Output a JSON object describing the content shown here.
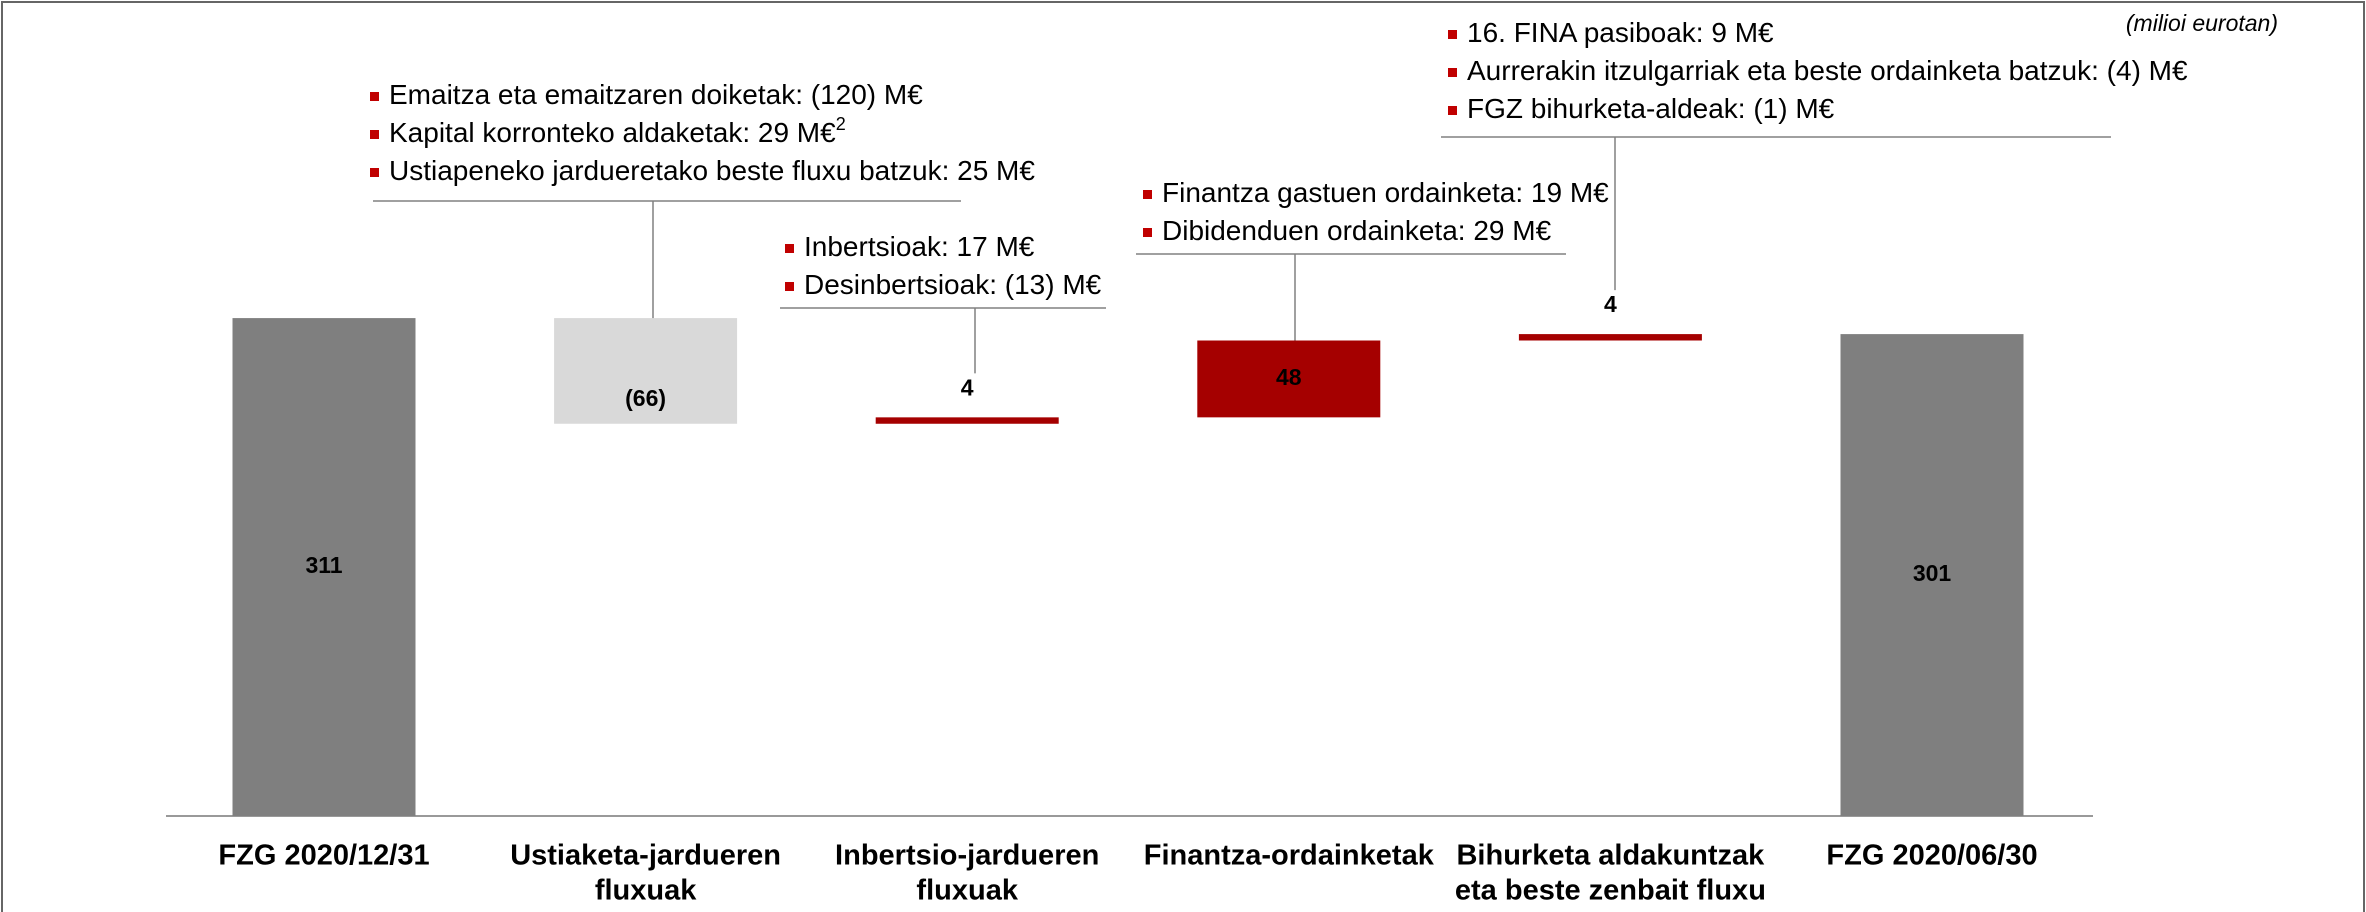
{
  "chart_data": {
    "type": "waterfall",
    "subtitle": "(milioi eurotan)",
    "categories": [
      "FZG 2020/12/31",
      "Ustiaketa-jardueren fluxuak",
      "Inbertsio-jardueren fluxuak",
      "Finantza-ordainketak",
      "Bihurketa aldakuntzak eta beste zenbait fluxu",
      "FZG 2020/06/30"
    ],
    "category_lines": [
      [
        "FZG 2020/12/31"
      ],
      [
        "Ustiaketa-jardueren",
        "fluxuak"
      ],
      [
        "Inbertsio-jardueren",
        "fluxuak"
      ],
      [
        "Finantza-ordainketak"
      ],
      [
        "Bihurketa aldakuntzak",
        "eta beste zenbait fluxu"
      ],
      [
        "FZG 2020/06/30"
      ]
    ],
    "values": [
      311,
      -66,
      4,
      48,
      4,
      301
    ],
    "value_labels": [
      "311",
      "(66)",
      "4",
      "48",
      "4",
      "301"
    ],
    "totals": [
      true,
      false,
      false,
      false,
      false,
      true
    ],
    "colors": [
      "#7f7f7f",
      "#d9d9d9",
      "#a50000",
      "#a50000",
      "#a50000",
      "#7f7f7f"
    ],
    "annotations": [
      {
        "lines": [
          {
            "text": "Emaitza eta emaitzaren doiketak: (120) M€"
          },
          {
            "text": "Kapital korronteko aldaketak: 29 M€",
            "sup": "2"
          },
          {
            "text": "Ustiapeneko jardueretako beste fluxu batzuk: 25 M€"
          }
        ]
      },
      {
        "lines": [
          {
            "text": "Inbertsioak: 17 M€"
          },
          {
            "text": "Desinbertsioak: (13) M€"
          }
        ]
      },
      {
        "lines": [
          {
            "text": "Finantza gastuen ordainketa: 19 M€"
          },
          {
            "text": "Dibidenduen ordainketa: 29 M€"
          }
        ]
      },
      {
        "lines": [
          {
            "text": "16. FINA pasiboak: 9 M€"
          },
          {
            "text": "Aurrerakin itzulgarriak eta beste ordainketa batzuk: (4) M€"
          },
          {
            "text": "FGZ bihurketa-aldeak: (1) M€"
          }
        ]
      }
    ]
  }
}
